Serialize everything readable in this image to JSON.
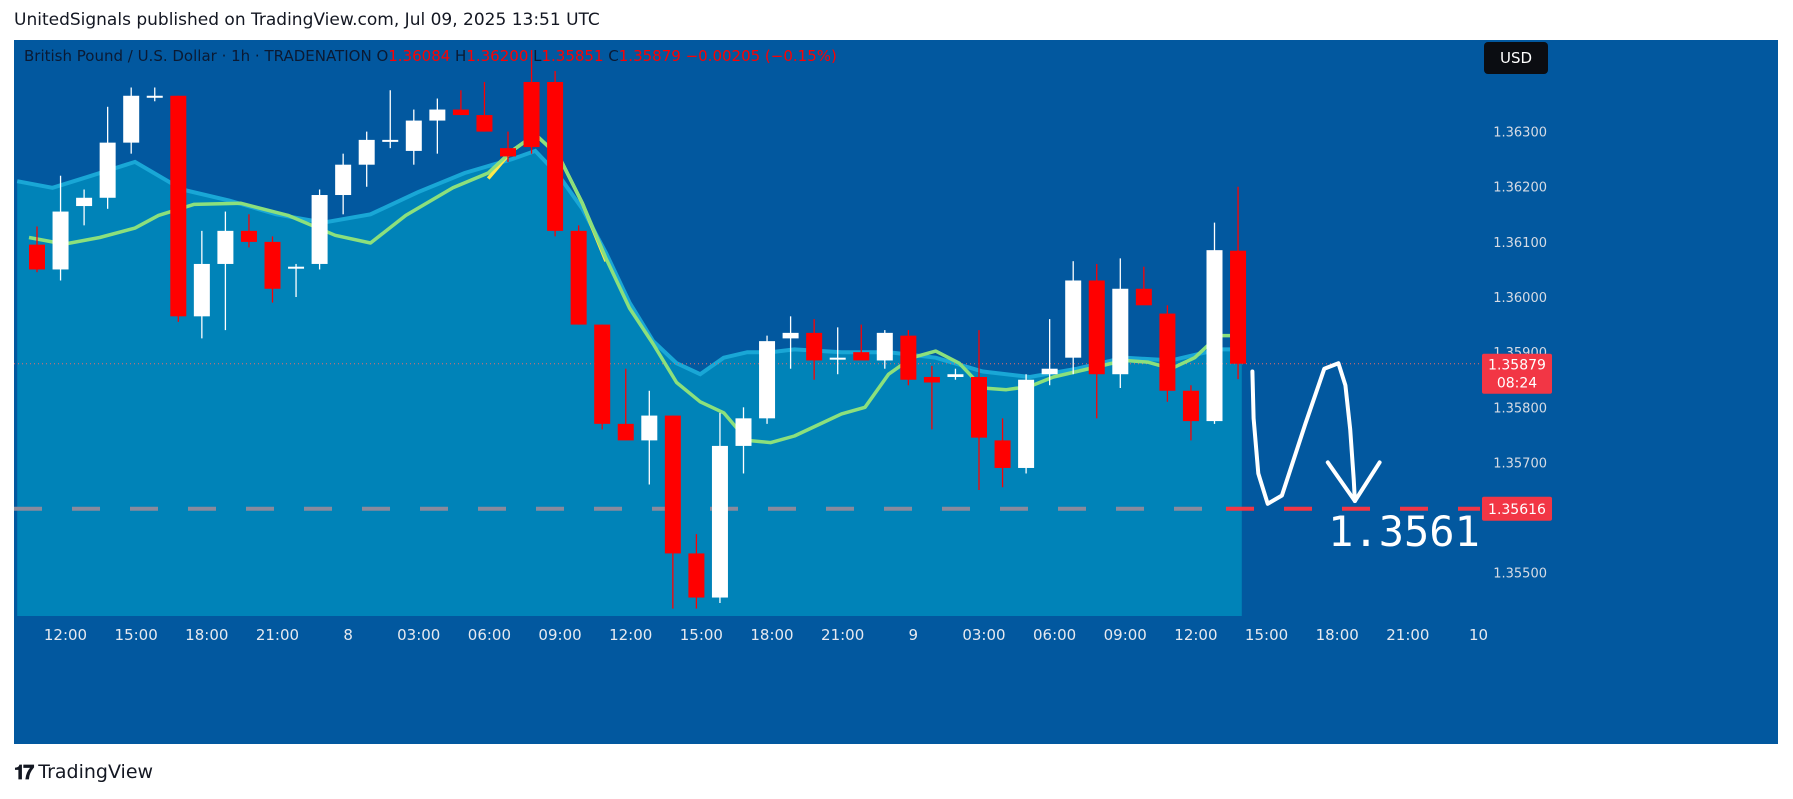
{
  "header": {
    "published_by": "UnitedSignals published on TradingView.com, Jul 09, 2025 13:51 UTC"
  },
  "footer": {
    "brand": "TradingView",
    "logo_glyph": "𝟏𝟕"
  },
  "colors": {
    "background": "#02589f",
    "area_fill": "#0083b8",
    "area_edge": "#19a7d6",
    "up": "#ffffff",
    "down": "#ff0000",
    "ma_yellow": "#ffe94a",
    "ma_green": "#8ce07c",
    "level_line": "#8a8a9c",
    "level_label": "#f23645"
  },
  "chart_data": {
    "type": "candlestick",
    "legend": {
      "symbol": "British Pound / U.S. Dollar · 1h · TRADENATION",
      "o_label": "O",
      "o": "1.36084",
      "h_label": "H",
      "h": "1.36200",
      "l_label": "L",
      "l": "1.35851",
      "c_label": "C",
      "c": "1.35879",
      "change": "−0.00205 (−0.15%)"
    },
    "currency_button": "USD",
    "ylim": [
      1.35435,
      1.36448
    ],
    "y_ticks": [
      1.363,
      1.362,
      1.361,
      1.36,
      1.359,
      1.358,
      1.357,
      1.355
    ],
    "y_tick_labels": [
      "1.36300",
      "1.36200",
      "1.36100",
      "1.36000",
      "1.35900",
      "1.35800",
      "1.35700",
      "1.35500"
    ],
    "x_ticks": [
      {
        "i": 1.55,
        "label": "12:00"
      },
      {
        "i": 4.55,
        "label": "15:00"
      },
      {
        "i": 7.55,
        "label": "18:00"
      },
      {
        "i": 10.55,
        "label": "21:00"
      },
      {
        "i": 13.55,
        "label": "8"
      },
      {
        "i": 16.55,
        "label": "03:00"
      },
      {
        "i": 19.55,
        "label": "06:00"
      },
      {
        "i": 22.55,
        "label": "09:00"
      },
      {
        "i": 25.55,
        "label": "12:00"
      },
      {
        "i": 28.55,
        "label": "15:00"
      },
      {
        "i": 31.55,
        "label": "18:00"
      },
      {
        "i": 34.55,
        "label": "21:00"
      },
      {
        "i": 37.55,
        "label": "9"
      },
      {
        "i": 40.55,
        "label": "03:00"
      },
      {
        "i": 43.55,
        "label": "06:00"
      },
      {
        "i": 46.55,
        "label": "09:00"
      },
      {
        "i": 49.55,
        "label": "12:00"
      },
      {
        "i": 52.55,
        "label": "15:00"
      },
      {
        "i": 55.55,
        "label": "18:00"
      },
      {
        "i": 58.55,
        "label": "21:00"
      },
      {
        "i": 61.55,
        "label": "10"
      }
    ],
    "candles": [
      [
        1.36095,
        1.36128,
        1.36045,
        1.3605
      ],
      [
        1.3605,
        1.3622,
        1.3603,
        1.36155
      ],
      [
        1.36165,
        1.36195,
        1.3613,
        1.3618
      ],
      [
        1.3618,
        1.36345,
        1.3616,
        1.3628
      ],
      [
        1.3628,
        1.3638,
        1.3626,
        1.36365
      ],
      [
        1.36365,
        1.3638,
        1.36355,
        1.36365
      ],
      [
        1.36365,
        1.36365,
        1.35955,
        1.35965
      ],
      [
        1.35965,
        1.3612,
        1.35925,
        1.3606
      ],
      [
        1.3606,
        1.36155,
        1.3594,
        1.3612
      ],
      [
        1.3612,
        1.3615,
        1.3609,
        1.361
      ],
      [
        1.361,
        1.3611,
        1.3599,
        1.36015
      ],
      [
        1.36055,
        1.3606,
        1.36,
        1.36055
      ],
      [
        1.3606,
        1.36195,
        1.3605,
        1.36185
      ],
      [
        1.36185,
        1.3626,
        1.3615,
        1.3624
      ],
      [
        1.3624,
        1.363,
        1.362,
        1.36285
      ],
      [
        1.36285,
        1.36375,
        1.3627,
        1.36285
      ],
      [
        1.36265,
        1.3634,
        1.3624,
        1.3632
      ],
      [
        1.3632,
        1.3636,
        1.3626,
        1.3634
      ],
      [
        1.3634,
        1.36375,
        1.3633,
        1.3633
      ],
      [
        1.3633,
        1.3639,
        1.363,
        1.363
      ],
      [
        1.3627,
        1.363,
        1.36245,
        1.36255
      ],
      [
        1.3639,
        1.36448,
        1.3626,
        1.36272
      ],
      [
        1.3639,
        1.3641,
        1.3611,
        1.3612
      ],
      [
        1.3612,
        1.3613,
        1.3595,
        1.3595
      ],
      [
        1.3595,
        1.3595,
        1.3576,
        1.3577
      ],
      [
        1.3577,
        1.3587,
        1.3575,
        1.3574
      ],
      [
        1.3574,
        1.3583,
        1.3566,
        1.35785
      ],
      [
        1.35785,
        1.35785,
        1.35435,
        1.35535
      ],
      [
        1.35535,
        1.3557,
        1.35435,
        1.35455
      ],
      [
        1.35455,
        1.3579,
        1.35445,
        1.3573
      ],
      [
        1.3573,
        1.358,
        1.3568,
        1.3578
      ],
      [
        1.3578,
        1.3593,
        1.3577,
        1.3592
      ],
      [
        1.35925,
        1.35965,
        1.3587,
        1.35935
      ],
      [
        1.35935,
        1.3596,
        1.3585,
        1.35885
      ],
      [
        1.3589,
        1.35945,
        1.3586,
        1.3589
      ],
      [
        1.359,
        1.3595,
        1.3589,
        1.35885
      ],
      [
        1.35885,
        1.3594,
        1.3587,
        1.35935
      ],
      [
        1.3593,
        1.3594,
        1.3584,
        1.3585
      ],
      [
        1.35855,
        1.35875,
        1.3576,
        1.35845
      ],
      [
        1.35855,
        1.3587,
        1.3585,
        1.3586
      ],
      [
        1.35855,
        1.3594,
        1.3565,
        1.35745
      ],
      [
        1.3574,
        1.3578,
        1.35655,
        1.3569
      ],
      [
        1.3569,
        1.3586,
        1.3568,
        1.3585
      ],
      [
        1.3586,
        1.3596,
        1.3584,
        1.3587
      ],
      [
        1.3589,
        1.36065,
        1.3586,
        1.3603
      ],
      [
        1.3603,
        1.3606,
        1.3578,
        1.3586
      ],
      [
        1.3586,
        1.3607,
        1.35835,
        1.36015
      ],
      [
        1.36015,
        1.36055,
        1.3599,
        1.35985
      ],
      [
        1.3597,
        1.35985,
        1.3581,
        1.3583
      ],
      [
        1.3583,
        1.3584,
        1.3574,
        1.35775
      ],
      [
        1.35775,
        1.36135,
        1.3577,
        1.36085
      ],
      [
        1.36084,
        1.362,
        1.35851,
        1.35879
      ]
    ],
    "ma_yellow": [
      [
        19.5,
        1.36215
      ],
      [
        20.5,
        1.36265
      ],
      [
        21.5,
        1.36295
      ],
      [
        22.5,
        1.36255
      ],
      [
        23.5,
        1.3617
      ],
      [
        24.5,
        1.36065
      ]
    ],
    "ma_green": [
      [
        0,
        1.36108
      ],
      [
        1.5,
        1.36096
      ],
      [
        3,
        1.36108
      ],
      [
        4.5,
        1.36125
      ],
      [
        5.5,
        1.36148
      ],
      [
        7,
        1.36168
      ],
      [
        9,
        1.3617
      ],
      [
        11,
        1.36148
      ],
      [
        13,
        1.36112
      ],
      [
        14.5,
        1.36098
      ],
      [
        16,
        1.36148
      ],
      [
        18,
        1.36198
      ],
      [
        19.5,
        1.36225
      ],
      [
        20.5,
        1.36265
      ],
      [
        21.5,
        1.36295
      ],
      [
        22.5,
        1.36255
      ],
      [
        23.5,
        1.3617
      ],
      [
        24.5,
        1.3607
      ],
      [
        25.5,
        1.3598
      ],
      [
        26.5,
        1.35915
      ],
      [
        27.5,
        1.35845
      ],
      [
        28.5,
        1.3581
      ],
      [
        29.5,
        1.3579
      ],
      [
        30.5,
        1.3574
      ],
      [
        31.5,
        1.35736
      ],
      [
        32.5,
        1.35748
      ],
      [
        33.5,
        1.35768
      ],
      [
        34.5,
        1.35788
      ],
      [
        35.5,
        1.358
      ],
      [
        36.5,
        1.3586
      ],
      [
        37.5,
        1.3589
      ],
      [
        38.5,
        1.35902
      ],
      [
        39.5,
        1.3588
      ],
      [
        40.5,
        1.35835
      ],
      [
        41.5,
        1.35832
      ],
      [
        42.5,
        1.35838
      ],
      [
        43.5,
        1.35855
      ],
      [
        44.5,
        1.35865
      ],
      [
        45.5,
        1.35875
      ],
      [
        46.5,
        1.35885
      ],
      [
        47.5,
        1.35882
      ],
      [
        48.5,
        1.3587
      ],
      [
        49.5,
        1.3589
      ],
      [
        50.5,
        1.3593
      ],
      [
        51,
        1.3593
      ]
    ],
    "area_top": [
      [
        -0.5,
        1.3621
      ],
      [
        1,
        1.36198
      ],
      [
        2.5,
        1.36218
      ],
      [
        4.5,
        1.36245
      ],
      [
        6.5,
        1.36195
      ],
      [
        8.5,
        1.36175
      ],
      [
        10.5,
        1.3615
      ],
      [
        12.5,
        1.36135
      ],
      [
        14.5,
        1.3615
      ],
      [
        16.5,
        1.3619
      ],
      [
        18.5,
        1.36225
      ],
      [
        20.5,
        1.3625
      ],
      [
        21.5,
        1.36265
      ],
      [
        22.5,
        1.3622
      ],
      [
        23.5,
        1.3616
      ],
      [
        24.5,
        1.3608
      ],
      [
        25.5,
        1.3599
      ],
      [
        26.5,
        1.3592
      ],
      [
        27.5,
        1.3588
      ],
      [
        28.5,
        1.3586
      ],
      [
        29.5,
        1.3589
      ],
      [
        30.5,
        1.359
      ],
      [
        31.5,
        1.359
      ],
      [
        32.5,
        1.35905
      ],
      [
        34.5,
        1.359
      ],
      [
        36.5,
        1.359
      ],
      [
        38.5,
        1.3589
      ],
      [
        40.5,
        1.35865
      ],
      [
        42.5,
        1.35855
      ],
      [
        44.5,
        1.3587
      ],
      [
        46.5,
        1.3589
      ],
      [
        48.5,
        1.35885
      ],
      [
        50.5,
        1.35905
      ],
      [
        51.5,
        1.35905
      ]
    ],
    "price_line": 1.35879,
    "price_label": "1.35879",
    "countdown": "08:24",
    "level_line": 1.35616,
    "level_label": "1.35616",
    "annotation_text": "1.3561",
    "projection": [
      [
        51.95,
        1.35865
      ],
      [
        52.0,
        1.3578
      ],
      [
        52.2,
        1.3568
      ],
      [
        52.6,
        1.35625
      ],
      [
        53.2,
        1.3564
      ],
      [
        54.2,
        1.3577
      ],
      [
        55.0,
        1.3587
      ],
      [
        55.6,
        1.3588
      ],
      [
        55.9,
        1.3584
      ],
      [
        56.1,
        1.3576
      ],
      [
        56.25,
        1.3567
      ],
      [
        56.3,
        1.3563
      ]
    ],
    "projection_arrowhead": [
      [
        55.15,
        1.357
      ],
      [
        56.3,
        1.3563
      ],
      [
        57.35,
        1.357
      ]
    ]
  }
}
